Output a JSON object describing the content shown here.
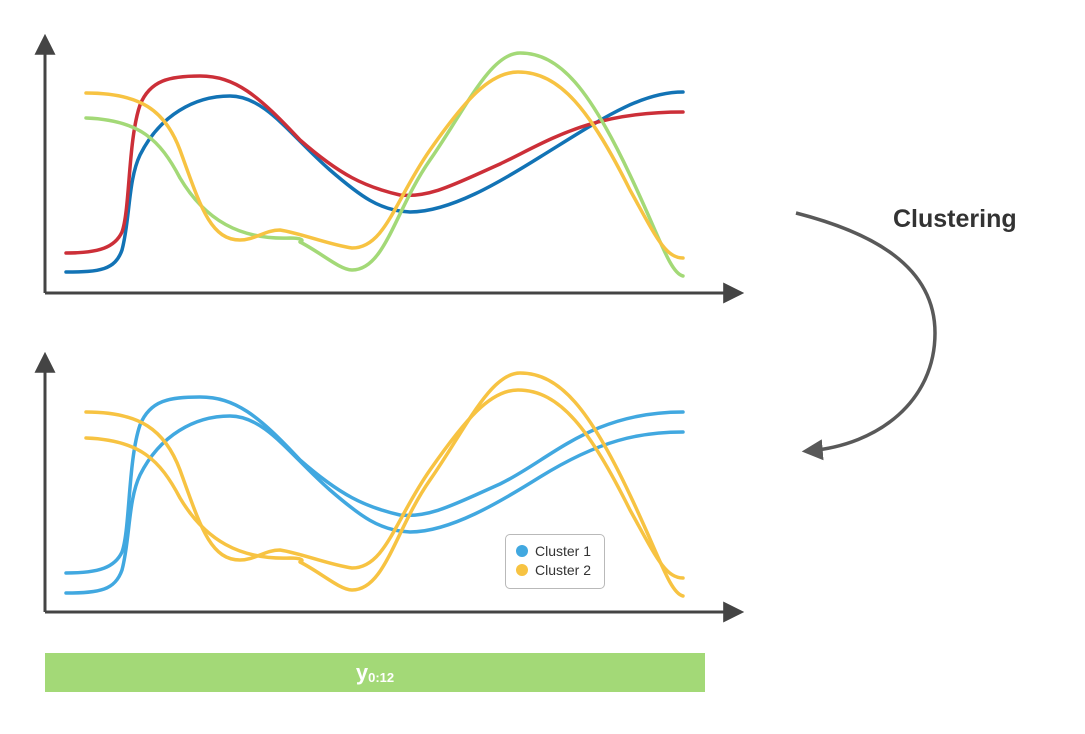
{
  "colors": {
    "axis": "#444444",
    "arrow": "#595959",
    "blue": "#1273b5",
    "red": "#cc2f38",
    "green": "#a3d977",
    "yellow": "#f7c342",
    "cluster1": "#41a8e0",
    "cluster2": "#f7c342",
    "bar": "#a3d977"
  },
  "annotation": {
    "arrow_label": "Clustering"
  },
  "legend": {
    "items": [
      {
        "label": "Cluster 1",
        "color": "#41a8e0"
      },
      {
        "label": "Cluster 2",
        "color": "#f7c342"
      }
    ]
  },
  "footer_bar": {
    "label_main": "y",
    "label_sub": "0:12"
  }
}
